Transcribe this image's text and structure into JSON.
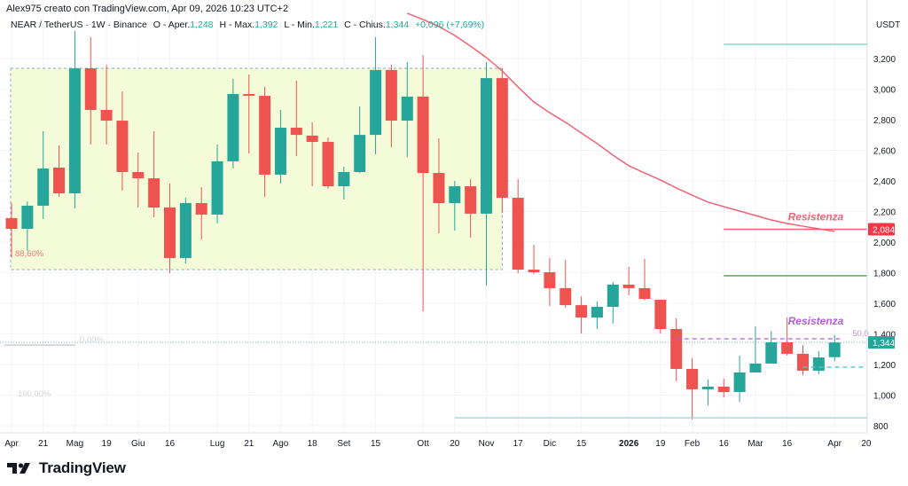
{
  "header": {
    "credit": "Alex975 creato con TradingView.com, Apr 09, 2026 10:23 UTC+2",
    "symbol": "NEAR / TetherUS · 1W · Binance",
    "open_label": "O - Aper.",
    "open": "1,248",
    "high_label": "H - Max.",
    "high": "1,392",
    "low_label": "L - Min.",
    "low": "1,221",
    "close_label": "C - Chius.",
    "close": "1,344",
    "change": "+0,096 (+7,69%)"
  },
  "price_axis": {
    "unit": "USDT",
    "ticks": [
      "3,200",
      "3,000",
      "2,800",
      "2,600",
      "2,400",
      "2,200",
      "2,000",
      "1,800",
      "1,600",
      "1,400",
      "1,200",
      "1,000",
      "800"
    ],
    "tick_values": [
      3200,
      3000,
      2800,
      2600,
      2400,
      2200,
      2000,
      1800,
      1600,
      1400,
      1200,
      1000,
      800
    ],
    "badges": [
      {
        "label": "2,084",
        "value": 2084,
        "color": "#f23645"
      },
      {
        "label": "1,344",
        "value": 1344,
        "color": "#26a69a"
      }
    ]
  },
  "time_axis": {
    "ticks": [
      {
        "label": "Apr",
        "date": "2025-04-07"
      },
      {
        "label": "21",
        "date": "2025-04-21"
      },
      {
        "label": "Mag",
        "date": "2025-05-05"
      },
      {
        "label": "19",
        "date": "2025-05-19"
      },
      {
        "label": "Giu",
        "date": "2025-06-02"
      },
      {
        "label": "16",
        "date": "2025-06-16"
      },
      {
        "label": "Lug",
        "date": "2025-07-07"
      },
      {
        "label": "21",
        "date": "2025-07-21"
      },
      {
        "label": "Ago",
        "date": "2025-08-04"
      },
      {
        "label": "18",
        "date": "2025-08-18"
      },
      {
        "label": "Set",
        "date": "2025-09-01"
      },
      {
        "label": "15",
        "date": "2025-09-15"
      },
      {
        "label": "Ott",
        "date": "2025-10-06"
      },
      {
        "label": "20",
        "date": "2025-10-20"
      },
      {
        "label": "Nov",
        "date": "2025-11-03"
      },
      {
        "label": "17",
        "date": "2025-11-17"
      },
      {
        "label": "Dic",
        "date": "2025-12-01"
      },
      {
        "label": "15",
        "date": "2025-12-15"
      },
      {
        "label": "2026",
        "date": "2026-01-05",
        "bold": true
      },
      {
        "label": "19",
        "date": "2026-01-19"
      },
      {
        "label": "Feb",
        "date": "2026-02-02"
      },
      {
        "label": "16",
        "date": "2026-02-16"
      },
      {
        "label": "Mar",
        "date": "2026-03-02"
      },
      {
        "label": "16",
        "date": "2026-03-16"
      },
      {
        "label": "Apr",
        "date": "2026-04-06"
      },
      {
        "label": "20",
        "date": "2026-04-20"
      }
    ]
  },
  "chart_data": {
    "type": "candlestick",
    "interval": "1W",
    "colors": {
      "up": "#26a69a",
      "down": "#ef5350",
      "ma": "#f06373"
    },
    "ylim": [
      760,
      3450
    ],
    "candles": [
      [
        "2025-04-07",
        2157,
        2255,
        1900,
        2087
      ],
      [
        "2025-04-14",
        2087,
        2267,
        1942,
        2238
      ],
      [
        "2025-04-21",
        2238,
        2725,
        2151,
        2481
      ],
      [
        "2025-04-28",
        2487,
        2632,
        2296,
        2319
      ],
      [
        "2025-05-05",
        2319,
        3380,
        2220,
        3136
      ],
      [
        "2025-05-12",
        3136,
        3340,
        2638,
        2864
      ],
      [
        "2025-05-19",
        2864,
        3159,
        2638,
        2794
      ],
      [
        "2025-05-26",
        2794,
        2985,
        2336,
        2458
      ],
      [
        "2025-06-02",
        2458,
        2585,
        2226,
        2417
      ],
      [
        "2025-06-09",
        2417,
        2725,
        2162,
        2226
      ],
      [
        "2025-06-16",
        2226,
        2383,
        1797,
        1896
      ],
      [
        "2025-06-23",
        1896,
        2290,
        1861,
        2255
      ],
      [
        "2025-06-30",
        2255,
        2359,
        2017,
        2180
      ],
      [
        "2025-07-07",
        2180,
        2638,
        2122,
        2528
      ],
      [
        "2025-07-14",
        2528,
        3067,
        2481,
        2968
      ],
      [
        "2025-07-21",
        2968,
        3096,
        2580,
        2956
      ],
      [
        "2025-07-28",
        2956,
        3015,
        2296,
        2441
      ],
      [
        "2025-08-04",
        2441,
        2864,
        2383,
        2748
      ],
      [
        "2025-08-11",
        2748,
        3055,
        2562,
        2701
      ],
      [
        "2025-08-18",
        2696,
        2783,
        2365,
        2655
      ],
      [
        "2025-08-25",
        2655,
        2684,
        2348,
        2365
      ],
      [
        "2025-09-01",
        2365,
        2493,
        2278,
        2458
      ],
      [
        "2025-09-08",
        2458,
        2887,
        2452,
        2701
      ],
      [
        "2025-09-15",
        2701,
        3340,
        2574,
        3125
      ],
      [
        "2025-09-22",
        3125,
        3159,
        2620,
        2794
      ],
      [
        "2025-09-29",
        2794,
        3177,
        2557,
        2951
      ],
      [
        "2025-10-06",
        2951,
        3223,
        1548,
        2452
      ],
      [
        "2025-10-13",
        2452,
        2678,
        2058,
        2255
      ],
      [
        "2025-10-20",
        2255,
        2400,
        2075,
        2365
      ],
      [
        "2025-10-27",
        2365,
        2412,
        2029,
        2186
      ],
      [
        "2025-11-03",
        2186,
        3177,
        1716,
        3072
      ],
      [
        "2025-11-10",
        3072,
        3136,
        2191,
        2290
      ],
      [
        "2025-11-17",
        2290,
        2412,
        1797,
        1820
      ],
      [
        "2025-11-24",
        1820,
        1983,
        1790,
        1803
      ],
      [
        "2025-12-01",
        1803,
        1896,
        1583,
        1699
      ],
      [
        "2025-12-08",
        1699,
        1884,
        1571,
        1588
      ],
      [
        "2025-12-15",
        1588,
        1646,
        1403,
        1507
      ],
      [
        "2025-12-22",
        1507,
        1612,
        1432,
        1577
      ],
      [
        "2025-12-29",
        1577,
        1739,
        1467,
        1722
      ],
      [
        "2026-01-05",
        1722,
        1838,
        1652,
        1699
      ],
      [
        "2026-01-12",
        1699,
        1890,
        1620,
        1629
      ],
      [
        "2026-01-19",
        1623,
        1623,
        1403,
        1432
      ],
      [
        "2026-01-26",
        1432,
        1502,
        1090,
        1171
      ],
      [
        "2026-02-02",
        1171,
        1241,
        841,
        1038
      ],
      [
        "2026-02-09",
        1038,
        1102,
        933,
        1055
      ],
      [
        "2026-02-16",
        1055,
        1107,
        985,
        1020
      ],
      [
        "2026-02-23",
        1020,
        1258,
        956,
        1148
      ],
      [
        "2026-03-02",
        1148,
        1449,
        1148,
        1206
      ],
      [
        "2026-03-09",
        1206,
        1420,
        1206,
        1345
      ],
      [
        "2026-03-16",
        1345,
        1507,
        1258,
        1270
      ],
      [
        "2026-03-23",
        1270,
        1328,
        1130,
        1159
      ],
      [
        "2026-03-30",
        1159,
        1287,
        1136,
        1246
      ],
      [
        "2026-04-06",
        1248,
        1392,
        1221,
        1344
      ]
    ],
    "moving_average": [
      null,
      null,
      null,
      null,
      null,
      null,
      null,
      null,
      null,
      null,
      null,
      null,
      null,
      null,
      null,
      null,
      null,
      null,
      null,
      null,
      null,
      null,
      null,
      null,
      null,
      3496,
      3455,
      3409,
      3351,
      3281,
      3206,
      3119,
      3014,
      2916,
      2846,
      2783,
      2713,
      2644,
      2568,
      2499,
      2452,
      2406,
      2354,
      2307,
      2261,
      2232,
      2203,
      2174,
      2145,
      2122,
      2104,
      2087,
      2070
    ],
    "drawings": {
      "range_box": {
        "from": "2025-04-07",
        "to": "2025-11-10",
        "top": 3136,
        "bottom": 1820,
        "fill": "#f4fbd8",
        "border": "#8fa3cc",
        "label": "88,60%",
        "label_value": 1930
      },
      "fib_labels": [
        {
          "label": "0,00%",
          "value": 1339
        },
        {
          "label": "100,00%",
          "value": 1015
        }
      ],
      "hlines": [
        {
          "value": 3293,
          "from": "2026-02-16",
          "color": "#7fd3c6",
          "style": "solid"
        },
        {
          "value": 2084,
          "from": "2026-02-16",
          "color": "#f06373",
          "style": "solid"
        },
        {
          "value": 1780,
          "from": "2026-02-16",
          "color": "#43a047",
          "style": "solid"
        },
        {
          "value": 1368,
          "from": "2026-01-26",
          "to": "2026-04-06",
          "color": "#b05fd0",
          "style": "dashed"
        },
        {
          "value": 1183,
          "from": "2026-03-23",
          "color": "#4fc3d3",
          "style": "dashed"
        },
        {
          "value": 852,
          "from": "2025-10-20",
          "color": "#9fd4e0",
          "style": "solid"
        }
      ],
      "texts": [
        {
          "label": "Resistenza",
          "value": 2165,
          "date": "2026-03-16",
          "color": "#f06373"
        },
        {
          "label": "Resistenza",
          "value": 1484,
          "date": "2026-03-16",
          "color": "#b05fd0"
        },
        {
          "label": "50,0",
          "value": 1410,
          "date": "2026-04-06",
          "color": "#c58fd8"
        }
      ],
      "price_line": {
        "value": 1344,
        "color": "#26a69a"
      }
    }
  },
  "branding": {
    "logo_text": "TradingView"
  }
}
